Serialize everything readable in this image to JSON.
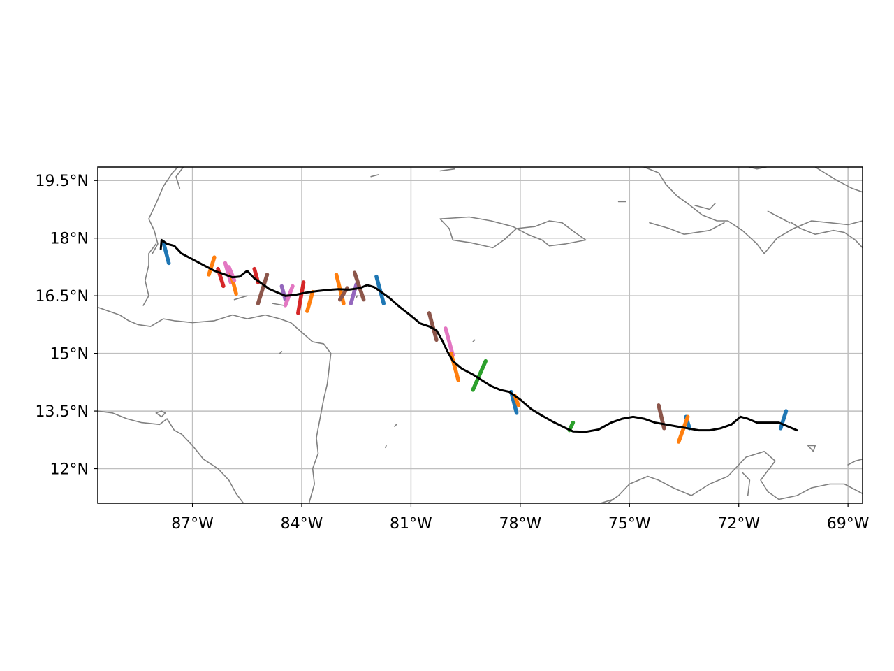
{
  "map": {
    "projection": "PlateCarree",
    "extent": {
      "lon": [
        -89.6,
        -68.6
      ],
      "lat": [
        11.1,
        19.85
      ]
    },
    "grid": true,
    "colors": {
      "coast": "#808080",
      "grid": "#bfbfbf",
      "track": "#000000",
      "frame": "#000000"
    },
    "xticks": [
      {
        "lon": -87,
        "label": "87°W"
      },
      {
        "lon": -84,
        "label": "84°W"
      },
      {
        "lon": -81,
        "label": "81°W"
      },
      {
        "lon": -78,
        "label": "78°W"
      },
      {
        "lon": -75,
        "label": "75°W"
      },
      {
        "lon": -72,
        "label": "72°W"
      },
      {
        "lon": -69,
        "label": "69°W"
      }
    ],
    "yticks": [
      {
        "lat": 19.5,
        "label": "19.5°N"
      },
      {
        "lat": 18.0,
        "label": "18°N"
      },
      {
        "lat": 16.5,
        "label": "16.5°N"
      },
      {
        "lat": 15.0,
        "label": "15°N"
      },
      {
        "lat": 13.5,
        "label": "13.5°N"
      },
      {
        "lat": 12.0,
        "label": "12°N"
      }
    ],
    "track": [
      [
        -87.87,
        17.72
      ],
      [
        -87.85,
        17.95
      ],
      [
        -87.7,
        17.85
      ],
      [
        -87.5,
        17.8
      ],
      [
        -87.3,
        17.6
      ],
      [
        -87.0,
        17.45
      ],
      [
        -86.7,
        17.3
      ],
      [
        -86.4,
        17.15
      ],
      [
        -86.1,
        17.05
      ],
      [
        -85.9,
        16.98
      ],
      [
        -85.7,
        17.0
      ],
      [
        -85.5,
        17.15
      ],
      [
        -85.3,
        16.95
      ],
      [
        -85.1,
        16.82
      ],
      [
        -84.9,
        16.68
      ],
      [
        -84.7,
        16.6
      ],
      [
        -84.45,
        16.5
      ],
      [
        -84.2,
        16.52
      ],
      [
        -83.9,
        16.58
      ],
      [
        -83.6,
        16.62
      ],
      [
        -83.3,
        16.65
      ],
      [
        -83.0,
        16.67
      ],
      [
        -82.7,
        16.66
      ],
      [
        -82.4,
        16.7
      ],
      [
        -82.2,
        16.78
      ],
      [
        -82.0,
        16.72
      ],
      [
        -81.85,
        16.62
      ],
      [
        -81.6,
        16.45
      ],
      [
        -81.3,
        16.2
      ],
      [
        -81.0,
        15.98
      ],
      [
        -80.75,
        15.78
      ],
      [
        -80.5,
        15.7
      ],
      [
        -80.3,
        15.6
      ],
      [
        -80.15,
        15.35
      ],
      [
        -80.0,
        15.05
      ],
      [
        -79.85,
        14.8
      ],
      [
        -79.6,
        14.6
      ],
      [
        -79.3,
        14.45
      ],
      [
        -79.05,
        14.3
      ],
      [
        -78.8,
        14.15
      ],
      [
        -78.55,
        14.05
      ],
      [
        -78.3,
        14.0
      ],
      [
        -78.0,
        13.8
      ],
      [
        -77.7,
        13.55
      ],
      [
        -77.4,
        13.38
      ],
      [
        -77.1,
        13.22
      ],
      [
        -76.8,
        13.08
      ],
      [
        -76.55,
        12.97
      ],
      [
        -76.2,
        12.96
      ],
      [
        -75.85,
        13.02
      ],
      [
        -75.5,
        13.2
      ],
      [
        -75.2,
        13.3
      ],
      [
        -74.9,
        13.35
      ],
      [
        -74.6,
        13.3
      ],
      [
        -74.3,
        13.2
      ],
      [
        -74.0,
        13.15
      ],
      [
        -73.7,
        13.1
      ],
      [
        -73.4,
        13.05
      ],
      [
        -73.1,
        13.0
      ],
      [
        -72.8,
        13.0
      ],
      [
        -72.5,
        13.05
      ],
      [
        -72.2,
        13.15
      ],
      [
        -71.95,
        13.35
      ],
      [
        -71.75,
        13.3
      ],
      [
        -71.5,
        13.2
      ],
      [
        -71.2,
        13.2
      ],
      [
        -70.9,
        13.2
      ],
      [
        -70.65,
        13.1
      ],
      [
        -70.4,
        13.0
      ]
    ],
    "segments": [
      {
        "color": "#1f77b4",
        "p1": [
          -87.8,
          17.9
        ],
        "p2": [
          -87.65,
          17.35
        ]
      },
      {
        "color": "#ff7f0e",
        "p1": [
          -86.4,
          17.5
        ],
        "p2": [
          -86.55,
          17.05
        ]
      },
      {
        "color": "#d62728",
        "p1": [
          -86.3,
          17.2
        ],
        "p2": [
          -86.15,
          16.75
        ]
      },
      {
        "color": "#e377c2",
        "p1": [
          -86.1,
          17.35
        ],
        "p2": [
          -85.95,
          16.85
        ]
      },
      {
        "color": "#ff7f0e",
        "p1": [
          -85.95,
          17.1
        ],
        "p2": [
          -85.8,
          16.55
        ]
      },
      {
        "color": "#e377c2",
        "p1": [
          -86.0,
          17.25
        ],
        "p2": [
          -85.85,
          16.9
        ]
      },
      {
        "color": "#d62728",
        "p1": [
          -85.3,
          17.2
        ],
        "p2": [
          -85.2,
          16.85
        ]
      },
      {
        "color": "#8c564b",
        "p1": [
          -84.95,
          17.05
        ],
        "p2": [
          -85.2,
          16.3
        ]
      },
      {
        "color": "#9467bd",
        "p1": [
          -84.55,
          16.75
        ],
        "p2": [
          -84.45,
          16.4
        ]
      },
      {
        "color": "#e377c2",
        "p1": [
          -84.25,
          16.75
        ],
        "p2": [
          -84.45,
          16.25
        ]
      },
      {
        "color": "#d62728",
        "p1": [
          -83.95,
          16.85
        ],
        "p2": [
          -84.1,
          16.05
        ]
      },
      {
        "color": "#ff7f0e",
        "p1": [
          -83.7,
          16.6
        ],
        "p2": [
          -83.85,
          16.1
        ]
      },
      {
        "color": "#ff7f0e",
        "p1": [
          -83.05,
          17.05
        ],
        "p2": [
          -82.85,
          16.3
        ]
      },
      {
        "color": "#8c564b",
        "p1": [
          -82.75,
          16.7
        ],
        "p2": [
          -82.95,
          16.4
        ]
      },
      {
        "color": "#9467bd",
        "p1": [
          -82.5,
          16.8
        ],
        "p2": [
          -82.65,
          16.3
        ]
      },
      {
        "color": "#8c564b",
        "p1": [
          -82.55,
          17.1
        ],
        "p2": [
          -82.3,
          16.4
        ]
      },
      {
        "color": "#1f77b4",
        "p1": [
          -81.95,
          17.0
        ],
        "p2": [
          -81.75,
          16.3
        ]
      },
      {
        "color": "#8c564b",
        "p1": [
          -80.5,
          16.05
        ],
        "p2": [
          -80.3,
          15.35
        ]
      },
      {
        "color": "#e377c2",
        "p1": [
          -80.05,
          15.65
        ],
        "p2": [
          -79.85,
          14.95
        ]
      },
      {
        "color": "#ff7f0e",
        "p1": [
          -79.9,
          15.0
        ],
        "p2": [
          -79.7,
          14.3
        ]
      },
      {
        "color": "#2ca02c",
        "p1": [
          -79.3,
          14.05
        ],
        "p2": [
          -78.95,
          14.8
        ]
      },
      {
        "color": "#1f77b4",
        "p1": [
          -78.25,
          14.0
        ],
        "p2": [
          -78.1,
          13.45
        ]
      },
      {
        "color": "#ff7f0e",
        "p1": [
          -78.15,
          13.9
        ],
        "p2": [
          -78.05,
          13.65
        ]
      },
      {
        "color": "#2ca02c",
        "p1": [
          -76.65,
          13.0
        ],
        "p2": [
          -76.55,
          13.2
        ]
      },
      {
        "color": "#8c564b",
        "p1": [
          -74.2,
          13.65
        ],
        "p2": [
          -74.05,
          13.05
        ]
      },
      {
        "color": "#1f77b4",
        "p1": [
          -73.45,
          13.35
        ],
        "p2": [
          -73.35,
          13.05
        ]
      },
      {
        "color": "#ff7f0e",
        "p1": [
          -73.4,
          13.35
        ],
        "p2": [
          -73.65,
          12.7
        ]
      },
      {
        "color": "#1f77b4",
        "p1": [
          -70.85,
          13.05
        ],
        "p2": [
          -70.7,
          13.5
        ]
      }
    ],
    "coastlines": [
      [
        [
          -88.1,
          17.6
        ],
        [
          -87.95,
          17.85
        ],
        [
          -88.05,
          18.2
        ],
        [
          -88.2,
          18.5
        ],
        [
          -88.0,
          18.9
        ],
        [
          -87.8,
          19.35
        ],
        [
          -87.55,
          19.7
        ],
        [
          -87.4,
          19.85
        ]
      ],
      [
        [
          -87.35,
          19.3
        ],
        [
          -87.45,
          19.6
        ],
        [
          -87.25,
          19.85
        ]
      ],
      [
        [
          -88.35,
          16.25
        ],
        [
          -88.2,
          16.5
        ],
        [
          -88.3,
          16.9
        ],
        [
          -88.2,
          17.3
        ],
        [
          -88.2,
          17.6
        ],
        [
          -88.0,
          17.85
        ]
      ],
      [
        [
          -89.6,
          16.2
        ],
        [
          -89.0,
          16.0
        ],
        [
          -88.75,
          15.85
        ],
        [
          -88.5,
          15.75
        ],
        [
          -88.15,
          15.7
        ],
        [
          -87.8,
          15.9
        ],
        [
          -87.5,
          15.85
        ],
        [
          -87.0,
          15.8
        ],
        [
          -86.4,
          15.85
        ],
        [
          -85.9,
          16.0
        ],
        [
          -85.5,
          15.9
        ],
        [
          -85.0,
          16.0
        ],
        [
          -84.6,
          15.9
        ],
        [
          -84.3,
          15.8
        ],
        [
          -84.0,
          15.55
        ],
        [
          -83.7,
          15.3
        ],
        [
          -83.4,
          15.25
        ],
        [
          -83.2,
          15.0
        ],
        [
          -83.25,
          14.6
        ],
        [
          -83.3,
          14.2
        ],
        [
          -83.4,
          13.8
        ],
        [
          -83.5,
          13.3
        ],
        [
          -83.6,
          12.8
        ],
        [
          -83.55,
          12.4
        ],
        [
          -83.7,
          12.0
        ],
        [
          -83.65,
          11.6
        ],
        [
          -83.8,
          11.1
        ]
      ],
      [
        [
          -89.6,
          13.5
        ],
        [
          -89.2,
          13.45
        ],
        [
          -88.8,
          13.3
        ],
        [
          -88.4,
          13.2
        ],
        [
          -87.9,
          13.15
        ],
        [
          -87.7,
          13.3
        ],
        [
          -87.5,
          13.0
        ],
        [
          -87.3,
          12.9
        ],
        [
          -87.0,
          12.6
        ],
        [
          -86.7,
          12.25
        ],
        [
          -86.3,
          12.0
        ],
        [
          -86.0,
          11.7
        ],
        [
          -85.8,
          11.35
        ],
        [
          -85.6,
          11.1
        ]
      ],
      [
        [
          -88.0,
          13.45
        ],
        [
          -87.85,
          13.35
        ],
        [
          -87.75,
          13.45
        ],
        [
          -87.85,
          13.5
        ],
        [
          -88.0,
          13.45
        ]
      ],
      [
        [
          -84.8,
          16.3
        ],
        [
          -84.5,
          16.25
        ]
      ],
      [
        [
          -85.85,
          16.4
        ],
        [
          -85.5,
          16.5
        ]
      ],
      [
        [
          -80.2,
          18.5
        ],
        [
          -79.95,
          18.25
        ],
        [
          -79.85,
          17.95
        ],
        [
          -79.35,
          17.88
        ],
        [
          -78.75,
          17.75
        ],
        [
          -78.45,
          17.95
        ],
        [
          -78.1,
          18.25
        ],
        [
          -77.6,
          18.3
        ],
        [
          -77.2,
          18.45
        ],
        [
          -76.85,
          18.4
        ],
        [
          -76.5,
          18.15
        ],
        [
          -76.2,
          17.95
        ],
        [
          -76.75,
          17.85
        ],
        [
          -77.2,
          17.8
        ],
        [
          -77.4,
          17.95
        ],
        [
          -77.8,
          18.1
        ],
        [
          -78.2,
          18.3
        ],
        [
          -78.8,
          18.45
        ],
        [
          -79.4,
          18.55
        ],
        [
          -80.2,
          18.5
        ]
      ],
      [
        [
          -75.2,
          19.9
        ],
        [
          -74.6,
          19.85
        ],
        [
          -74.2,
          19.7
        ],
        [
          -74.0,
          19.4
        ],
        [
          -73.7,
          19.1
        ],
        [
          -73.4,
          18.9
        ],
        [
          -73.0,
          18.6
        ],
        [
          -72.6,
          18.45
        ],
        [
          -72.3,
          18.45
        ],
        [
          -71.9,
          18.2
        ],
        [
          -71.5,
          17.85
        ],
        [
          -71.3,
          17.6
        ],
        [
          -70.95,
          18.0
        ],
        [
          -70.5,
          18.25
        ],
        [
          -70.0,
          18.45
        ],
        [
          -69.5,
          18.4
        ],
        [
          -69.0,
          18.35
        ],
        [
          -68.6,
          18.45
        ]
      ],
      [
        [
          -74.45,
          18.4
        ],
        [
          -73.9,
          18.25
        ],
        [
          -73.5,
          18.1
        ],
        [
          -72.8,
          18.2
        ],
        [
          -72.4,
          18.4
        ]
      ],
      [
        [
          -73.2,
          18.85
        ],
        [
          -72.8,
          18.75
        ],
        [
          -72.65,
          18.9
        ]
      ],
      [
        [
          -69.9,
          19.85
        ],
        [
          -69.3,
          19.5
        ],
        [
          -68.9,
          19.3
        ],
        [
          -68.6,
          19.2
        ]
      ],
      [
        [
          -82.1,
          19.6
        ],
        [
          -81.9,
          19.65
        ]
      ],
      [
        [
          -80.2,
          19.75
        ],
        [
          -79.8,
          19.8
        ]
      ],
      [
        [
          -75.3,
          18.95
        ],
        [
          -75.1,
          18.95
        ]
      ],
      [
        [
          -72.15,
          19.95
        ],
        [
          -71.5,
          19.8
        ],
        [
          -71.0,
          19.9
        ]
      ],
      [
        [
          -71.2,
          18.7
        ],
        [
          -70.9,
          18.55
        ],
        [
          -70.6,
          18.4
        ]
      ],
      [
        [
          -68.6,
          17.75
        ],
        [
          -68.8,
          17.95
        ],
        [
          -69.1,
          18.15
        ],
        [
          -69.4,
          18.2
        ],
        [
          -69.9,
          18.1
        ],
        [
          -70.3,
          18.25
        ],
        [
          -70.55,
          18.4
        ]
      ],
      [
        [
          -75.6,
          11.1
        ],
        [
          -75.3,
          11.3
        ],
        [
          -75.0,
          11.6
        ],
        [
          -74.5,
          11.8
        ],
        [
          -74.2,
          11.7
        ],
        [
          -73.8,
          11.5
        ],
        [
          -73.3,
          11.3
        ],
        [
          -72.8,
          11.6
        ],
        [
          -72.3,
          11.8
        ],
        [
          -71.8,
          12.3
        ],
        [
          -71.3,
          12.45
        ],
        [
          -71.0,
          12.2
        ],
        [
          -71.2,
          11.95
        ],
        [
          -71.4,
          11.7
        ],
        [
          -71.2,
          11.4
        ],
        [
          -70.9,
          11.2
        ],
        [
          -70.4,
          11.3
        ],
        [
          -70.0,
          11.5
        ],
        [
          -69.5,
          11.6
        ],
        [
          -69.1,
          11.6
        ],
        [
          -68.8,
          11.45
        ],
        [
          -68.6,
          11.35
        ]
      ],
      [
        [
          -71.9,
          11.9
        ],
        [
          -71.7,
          11.7
        ],
        [
          -71.75,
          11.3
        ]
      ],
      [
        [
          -69.95,
          12.45
        ],
        [
          -69.9,
          12.6
        ],
        [
          -70.1,
          12.6
        ],
        [
          -69.95,
          12.45
        ]
      ],
      [
        [
          -69.0,
          12.1
        ],
        [
          -68.8,
          12.2
        ],
        [
          -68.6,
          12.25
        ]
      ],
      [
        [
          -75.8,
          11.1
        ],
        [
          -75.45,
          11.2
        ]
      ],
      [
        [
          -79.3,
          15.3
        ],
        [
          -79.25,
          15.35
        ]
      ],
      [
        [
          -81.45,
          13.1
        ],
        [
          -81.4,
          13.15
        ]
      ],
      [
        [
          -81.7,
          12.55
        ],
        [
          -81.68,
          12.6
        ]
      ],
      [
        [
          -82.5,
          16.45
        ],
        [
          -82.48,
          16.5
        ]
      ],
      [
        [
          -84.6,
          15.0
        ],
        [
          -84.55,
          15.05
        ]
      ]
    ]
  }
}
